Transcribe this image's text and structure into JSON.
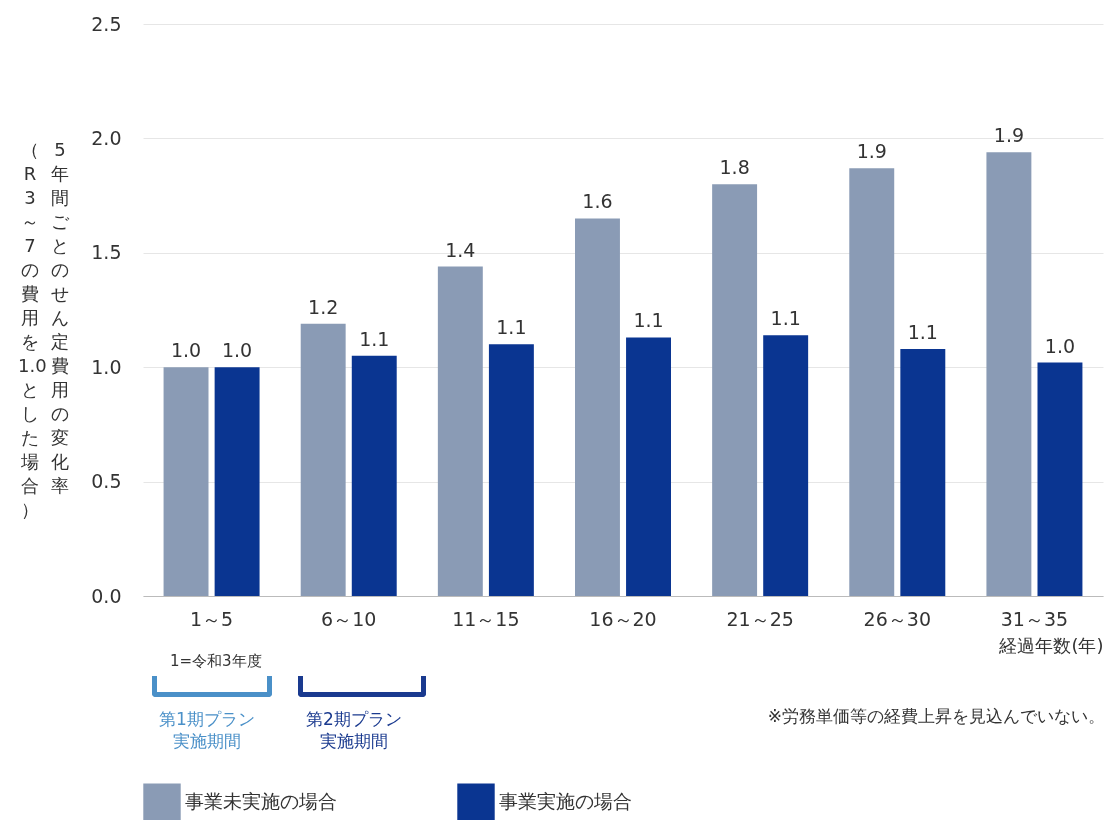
{
  "chart_data": {
    "type": "bar",
    "xlabel": "経過年数(年)",
    "ylabel": "5年間ごとのせん定費用の変化率（R3～7の費用を1.0とした場合）",
    "categories": [
      "1～5",
      "6～10",
      "11～15",
      "16～20",
      "21～25",
      "26～30",
      "31～35"
    ],
    "series": [
      {
        "name": "事業未実施の場合",
        "color": "#8a9bb5",
        "values": [
          1.0,
          1.19,
          1.44,
          1.65,
          1.8,
          1.87,
          1.94
        ],
        "value_labels": [
          "1.0",
          "1.2",
          "1.4",
          "1.6",
          "1.8",
          "1.9",
          "1.9"
        ]
      },
      {
        "name": "事業実施の場合",
        "color": "#0a3591",
        "values": [
          1.0,
          1.05,
          1.1,
          1.13,
          1.14,
          1.08,
          1.02
        ],
        "value_labels": [
          "1.0",
          "1.1",
          "1.1",
          "1.1",
          "1.1",
          "1.1",
          "1.0"
        ]
      }
    ],
    "ylim": [
      0,
      2.5
    ],
    "yticks": [
      {
        "value": 0,
        "label": "0.0"
      },
      {
        "value": 0.5,
        "label": "0.5"
      },
      {
        "value": 1,
        "label": "1.0"
      },
      {
        "value": 1.5,
        "label": "1.5"
      },
      {
        "value": 2,
        "label": "2.0"
      },
      {
        "value": 2.5,
        "label": "2.5"
      }
    ],
    "grid": "y",
    "legend": "bottom",
    "annotations": [
      "1=令和3年度",
      "第1期プラン実施期間",
      "第2期プラン実施期間",
      "※労務単価等の経費上昇を見込んでいない。"
    ]
  }
}
